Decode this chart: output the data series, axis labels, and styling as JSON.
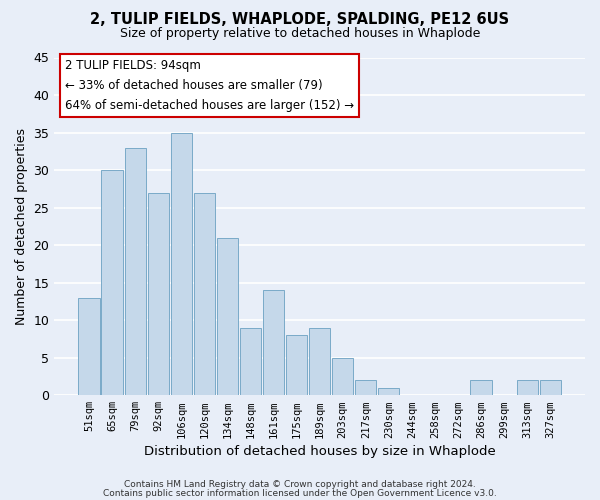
{
  "title": "2, TULIP FIELDS, WHAPLODE, SPALDING, PE12 6US",
  "subtitle": "Size of property relative to detached houses in Whaplode",
  "xlabel": "Distribution of detached houses by size in Whaplode",
  "ylabel": "Number of detached properties",
  "bar_labels": [
    "51sqm",
    "65sqm",
    "79sqm",
    "92sqm",
    "106sqm",
    "120sqm",
    "134sqm",
    "148sqm",
    "161sqm",
    "175sqm",
    "189sqm",
    "203sqm",
    "217sqm",
    "230sqm",
    "244sqm",
    "258sqm",
    "272sqm",
    "286sqm",
    "299sqm",
    "313sqm",
    "327sqm"
  ],
  "bar_values": [
    13,
    30,
    33,
    27,
    35,
    27,
    21,
    9,
    14,
    8,
    9,
    5,
    2,
    1,
    0,
    0,
    0,
    2,
    0,
    2,
    2
  ],
  "bar_color": "#c5d8ea",
  "bar_edge_color": "#7aaac8",
  "ylim": [
    0,
    45
  ],
  "yticks": [
    0,
    5,
    10,
    15,
    20,
    25,
    30,
    35,
    40,
    45
  ],
  "annotation_title": "2 TULIP FIELDS: 94sqm",
  "annotation_line1": "← 33% of detached houses are smaller (79)",
  "annotation_line2": "64% of semi-detached houses are larger (152) →",
  "annotation_box_color": "#ffffff",
  "annotation_box_edge": "#cc0000",
  "footer1": "Contains HM Land Registry data © Crown copyright and database right 2024.",
  "footer2": "Contains public sector information licensed under the Open Government Licence v3.0.",
  "bg_color": "#e8eef8",
  "grid_color": "#ffffff",
  "title_fontsize": 10.5,
  "subtitle_fontsize": 9
}
